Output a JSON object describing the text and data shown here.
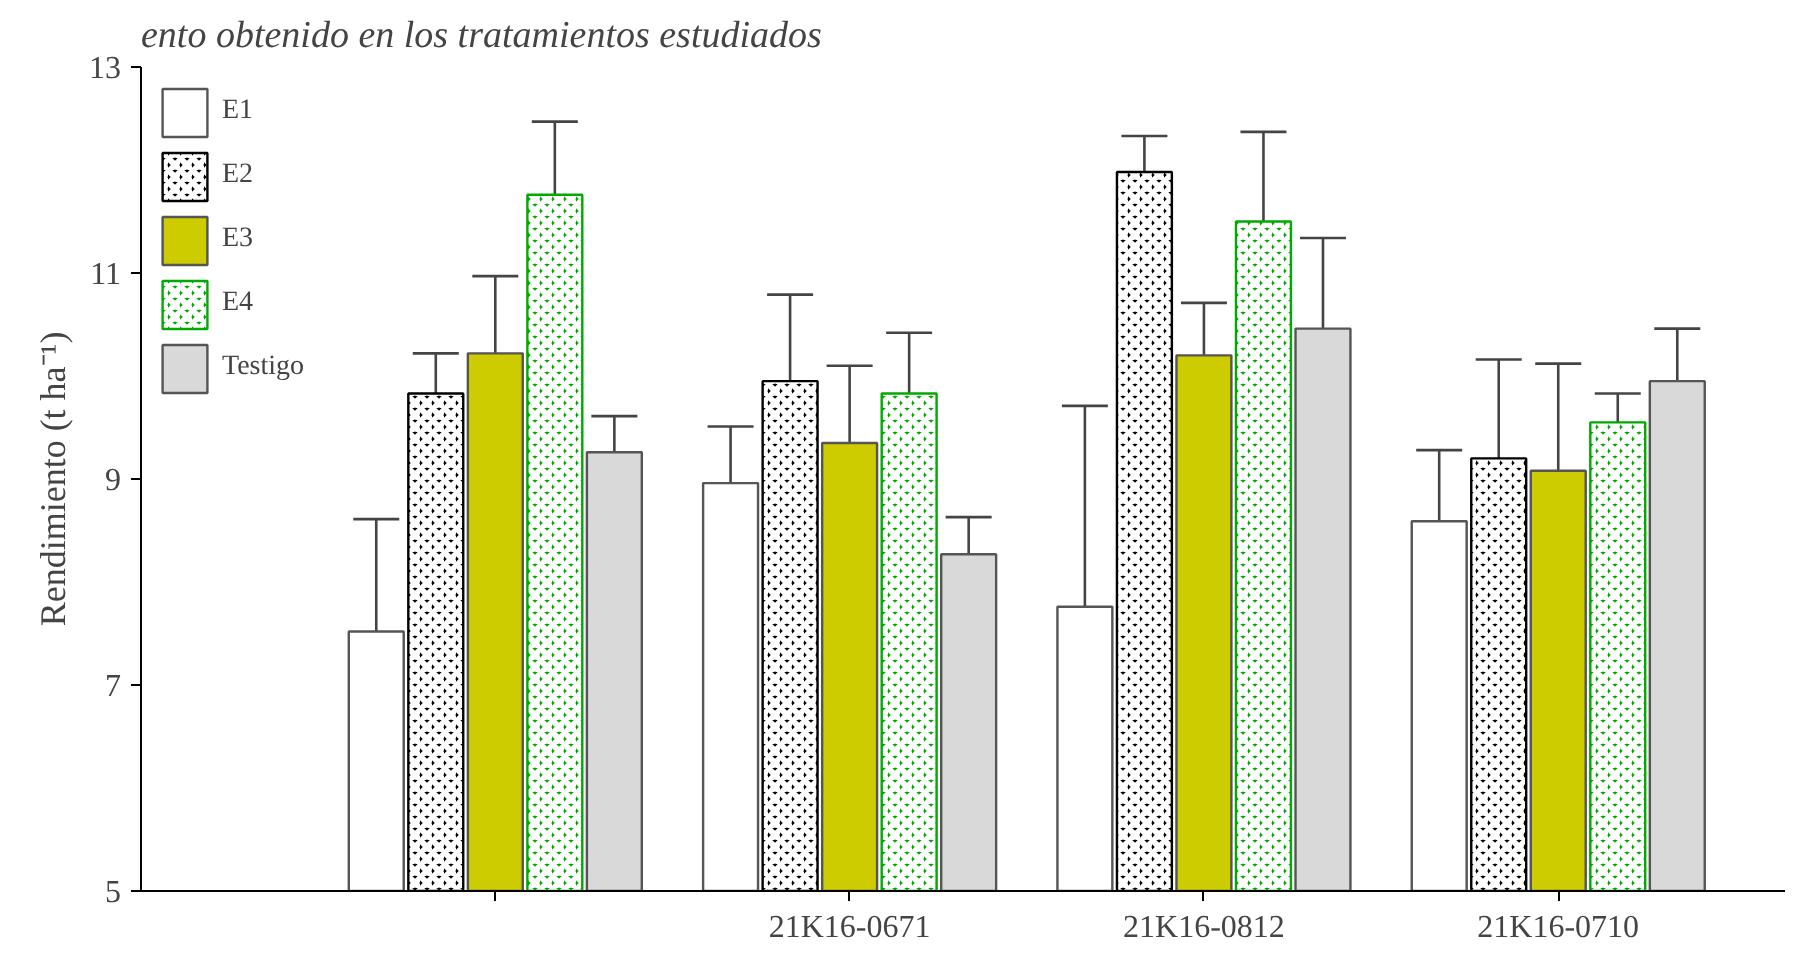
{
  "chart_data": {
    "type": "bar",
    "title": "ento obtenido en los tratamientos estudiados",
    "ylabel": "Rendimiento (t ha⁻¹)",
    "categories": [
      null,
      "21K16-0671",
      "21K16-0812",
      "21K16-0710"
    ],
    "series": [
      {
        "name": "E1",
        "color": "#ffffff",
        "values": [
          7.52,
          8.96,
          7.76,
          8.59
        ],
        "errors": [
          [
            7.52,
            8.61
          ],
          [
            8.96,
            9.51
          ],
          [
            7.76,
            9.71
          ],
          [
            8.59,
            9.28
          ]
        ]
      },
      {
        "name": "E2",
        "color": "#000000",
        "values": [
          9.83,
          9.95,
          11.98,
          9.2
        ],
        "errors": [
          [
            9.83,
            10.22
          ],
          [
            9.95,
            10.79
          ],
          [
            11.98,
            12.33
          ],
          [
            9.2,
            10.16
          ]
        ]
      },
      {
        "name": "E3",
        "color": "#cccc00",
        "values": [
          10.22,
          9.35,
          10.2,
          9.08
        ],
        "errors": [
          [
            10.22,
            10.97
          ],
          [
            9.35,
            10.1
          ],
          [
            10.2,
            10.71
          ],
          [
            9.08,
            10.12
          ]
        ]
      },
      {
        "name": "E4",
        "color": "#00aa00",
        "values": [
          11.76,
          9.83,
          11.5,
          9.55
        ],
        "errors": [
          [
            11.76,
            12.47
          ],
          [
            9.83,
            10.42
          ],
          [
            11.5,
            12.37
          ],
          [
            9.55,
            9.83
          ]
        ]
      },
      {
        "name": "Testigo",
        "color": "#d9d9d9",
        "values": [
          9.26,
          8.27,
          10.46,
          9.95
        ],
        "errors": [
          [
            9.26,
            9.61
          ],
          [
            8.27,
            8.63
          ],
          [
            10.46,
            11.34
          ],
          [
            9.95,
            10.46
          ]
        ]
      }
    ],
    "ylim": [
      5,
      13
    ],
    "yticks": [
      5,
      7,
      9,
      11,
      13
    ],
    "legend": "top left",
    "grid": false
  }
}
